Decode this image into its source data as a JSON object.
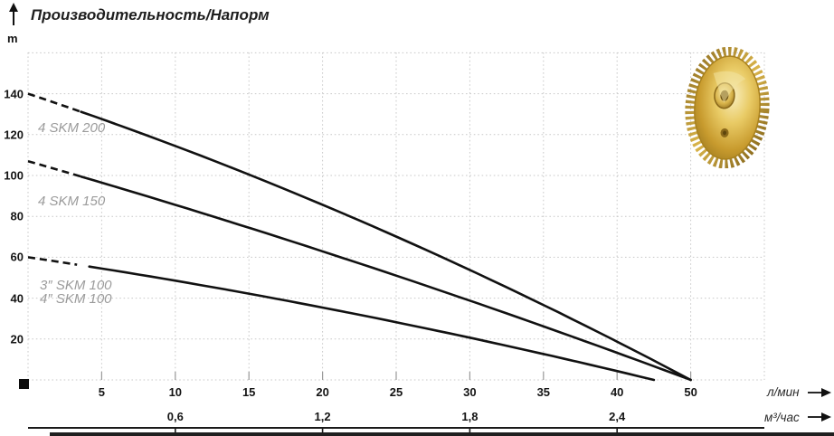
{
  "header": {
    "title": "Производительность/Напорм",
    "y_unit": "m"
  },
  "axis_units": {
    "primary": "л/мин",
    "secondary": "м³/час"
  },
  "curve_labels": {
    "skm200": "4 SKM 200",
    "skm150": "4 SKM 150",
    "skm100_line1": "3″ SKM 100",
    "skm100_line2": "4″ SKM 100"
  },
  "colors": {
    "curve": "#111111",
    "grid": "#c9c9c9",
    "label_gray": "#9b9b9b",
    "impeller_gold": "#c89b2e"
  },
  "chart_data": {
    "type": "line",
    "title": "Производительность/Напорм",
    "ylabel": "Напор, m",
    "xlabel": "Производительность, л/мин (м³/час)",
    "ylim": [
      0,
      160
    ],
    "grid": true,
    "legend_position": "on-curve-left",
    "y_ticks": [
      "20",
      "40",
      "60",
      "80",
      "100",
      "120",
      "140"
    ],
    "x_ticks_lpm": [
      "5",
      "10",
      "15",
      "20",
      "25",
      "30",
      "35",
      "40",
      "50"
    ],
    "x_ticks_m3h": [
      "0,6",
      "1,2",
      "1,8",
      "2,4"
    ],
    "series": [
      {
        "name": "4 SKM 200",
        "dashed_until_q": 3.6,
        "points": [
          [
            0,
            140
          ],
          [
            22.5,
            78
          ],
          [
            50,
            0
          ]
        ]
      },
      {
        "name": "4 SKM 150",
        "dashed_until_q": 3.6,
        "points": [
          [
            0,
            107
          ],
          [
            22.5,
            57
          ],
          [
            50,
            0
          ]
        ]
      },
      {
        "name": "3″/4″ SKM 100",
        "dashed_until_q": 3.6,
        "points": [
          [
            0,
            60
          ],
          [
            21,
            34
          ],
          [
            45,
            0
          ]
        ]
      }
    ]
  }
}
